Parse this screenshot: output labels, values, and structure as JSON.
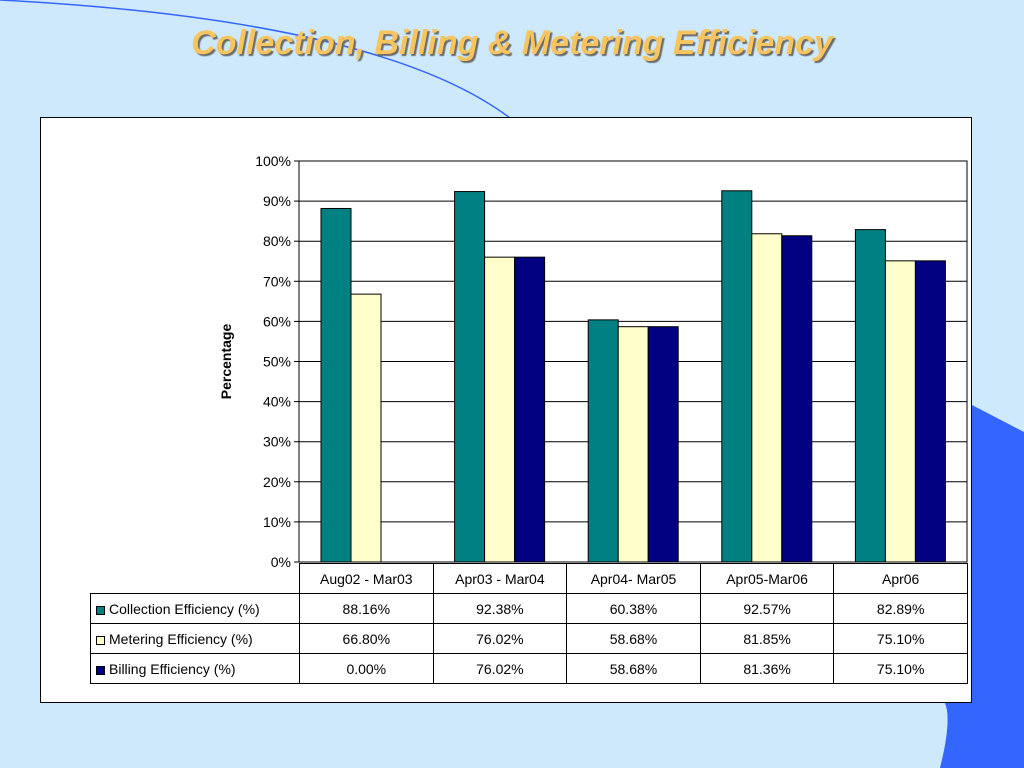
{
  "slide": {
    "title": "Collection, Billing & Metering Efficiency"
  },
  "colors": {
    "background": "#cde9fb",
    "accent": "#3366ff",
    "title": "#f7c45e"
  },
  "chart_data": {
    "type": "bar",
    "title": "",
    "xlabel": "",
    "ylabel": "Percentage",
    "ylim": [
      0,
      100
    ],
    "yticks": [
      "0%",
      "10%",
      "20%",
      "30%",
      "40%",
      "50%",
      "60%",
      "70%",
      "80%",
      "90%",
      "100%"
    ],
    "grid": true,
    "legend": "data-table",
    "categories": [
      "Aug02 - Mar03",
      "Apr03 - Mar04",
      "Apr04- Mar05",
      "Apr05-Mar06",
      "Apr06"
    ],
    "series": [
      {
        "name": "Collection Efficiency (%)",
        "color": "#008080",
        "values": [
          88.16,
          92.38,
          60.38,
          92.57,
          82.89
        ],
        "labels": [
          "88.16%",
          "92.38%",
          "60.38%",
          "92.57%",
          "82.89%"
        ]
      },
      {
        "name": "Metering Efficiency (%)",
        "color": "#ffffcc",
        "values": [
          66.8,
          76.02,
          58.68,
          81.85,
          75.1
        ],
        "labels": [
          "66.80%",
          "76.02%",
          "58.68%",
          "81.85%",
          "75.10%"
        ]
      },
      {
        "name": "Billing Efficiency (%)",
        "color": "#000080",
        "values": [
          0.0,
          76.02,
          58.68,
          81.36,
          75.1
        ],
        "labels": [
          "0.00%",
          "76.02%",
          "58.68%",
          "81.36%",
          "75.10%"
        ]
      }
    ]
  }
}
